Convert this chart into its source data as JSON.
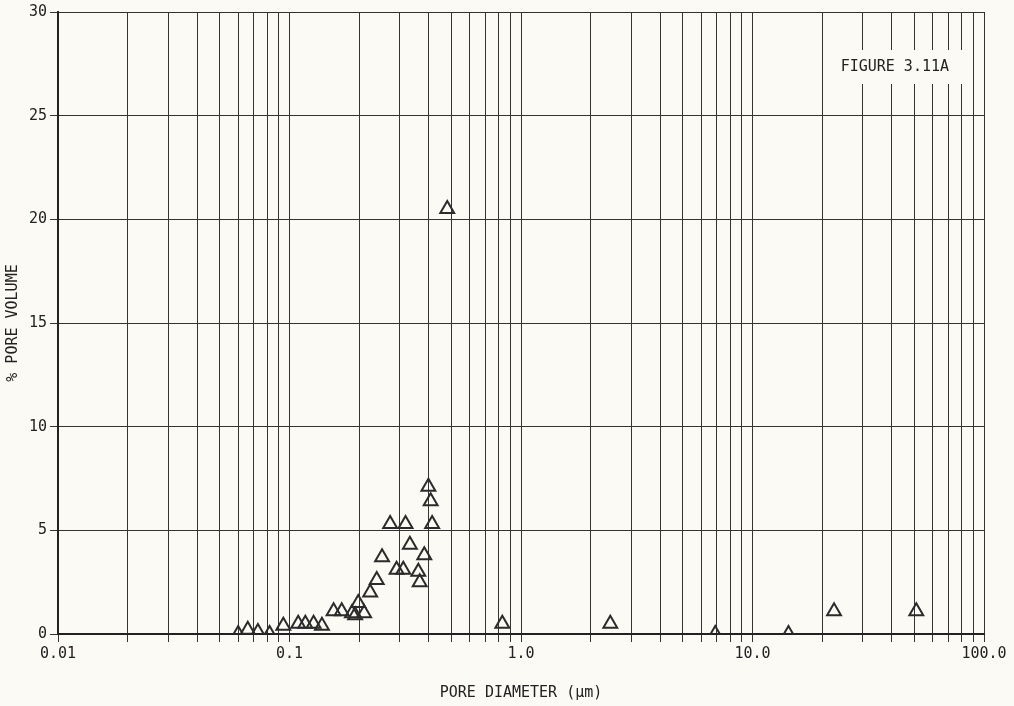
{
  "chart_data": {
    "type": "scatter",
    "xlabel": "PORE DIAMETER (μm)",
    "ylabel": "% PORE VOLUME",
    "log": "x",
    "grid": true,
    "marker": "triangle",
    "legend": false,
    "annotations": [
      "FIGURE 3.11A"
    ],
    "xlim": [
      0.01,
      100
    ],
    "ylim": [
      0,
      30
    ],
    "xticks": [
      {
        "value": 0.01,
        "label": "0.01"
      },
      {
        "value": 0.02,
        "label": null
      },
      {
        "value": 0.03,
        "label": null
      },
      {
        "value": 0.04,
        "label": null
      },
      {
        "value": 0.05,
        "label": null
      },
      {
        "value": 0.06,
        "label": null
      },
      {
        "value": 0.07,
        "label": null
      },
      {
        "value": 0.08,
        "label": null
      },
      {
        "value": 0.09,
        "label": null
      },
      {
        "value": 0.1,
        "label": "0.1"
      },
      {
        "value": 0.2,
        "label": null
      },
      {
        "value": 0.3,
        "label": null
      },
      {
        "value": 0.4,
        "label": null
      },
      {
        "value": 0.5,
        "label": null
      },
      {
        "value": 0.6,
        "label": null
      },
      {
        "value": 0.7,
        "label": null
      },
      {
        "value": 0.8,
        "label": null
      },
      {
        "value": 0.9,
        "label": null
      },
      {
        "value": 1,
        "label": "1.0"
      },
      {
        "value": 2,
        "label": null
      },
      {
        "value": 3,
        "label": null
      },
      {
        "value": 4,
        "label": null
      },
      {
        "value": 5,
        "label": null
      },
      {
        "value": 6,
        "label": null
      },
      {
        "value": 7,
        "label": null
      },
      {
        "value": 8,
        "label": null
      },
      {
        "value": 9,
        "label": null
      },
      {
        "value": 10,
        "label": "10.0"
      },
      {
        "value": 20,
        "label": null
      },
      {
        "value": 30,
        "label": null
      },
      {
        "value": 40,
        "label": null
      },
      {
        "value": 50,
        "label": null
      },
      {
        "value": 60,
        "label": null
      },
      {
        "value": 70,
        "label": null
      },
      {
        "value": 80,
        "label": null
      },
      {
        "value": 90,
        "label": null
      },
      {
        "value": 100,
        "label": "100.0"
      }
    ],
    "yticks": [
      0,
      5,
      10,
      15,
      20,
      25,
      30
    ],
    "series": [
      {
        "color": "#2b2b2b",
        "x": [
          0.06,
          0.066,
          0.073,
          0.082,
          0.094,
          0.109,
          0.117,
          0.127,
          0.138,
          0.155,
          0.168,
          0.186,
          0.192,
          0.198,
          0.21,
          0.223,
          0.238,
          0.251,
          0.272,
          0.29,
          0.31,
          0.317,
          0.331,
          0.36,
          0.365,
          0.382,
          0.398,
          0.407,
          0.413,
          0.48,
          0.83,
          2.43,
          6.9,
          14.3,
          22.5,
          51
        ],
        "values": [
          0,
          0.2,
          0.1,
          0,
          0.4,
          0.5,
          0.5,
          0.5,
          0.4,
          1.1,
          1.1,
          1.0,
          0.9,
          1.5,
          1.0,
          2.0,
          2.6,
          3.7,
          5.3,
          3.1,
          3.1,
          5.3,
          4.3,
          3.0,
          2.5,
          3.8,
          7.1,
          6.4,
          5.3,
          20.5,
          0.5,
          0.5,
          0,
          0,
          1.1,
          1.1
        ]
      }
    ]
  }
}
